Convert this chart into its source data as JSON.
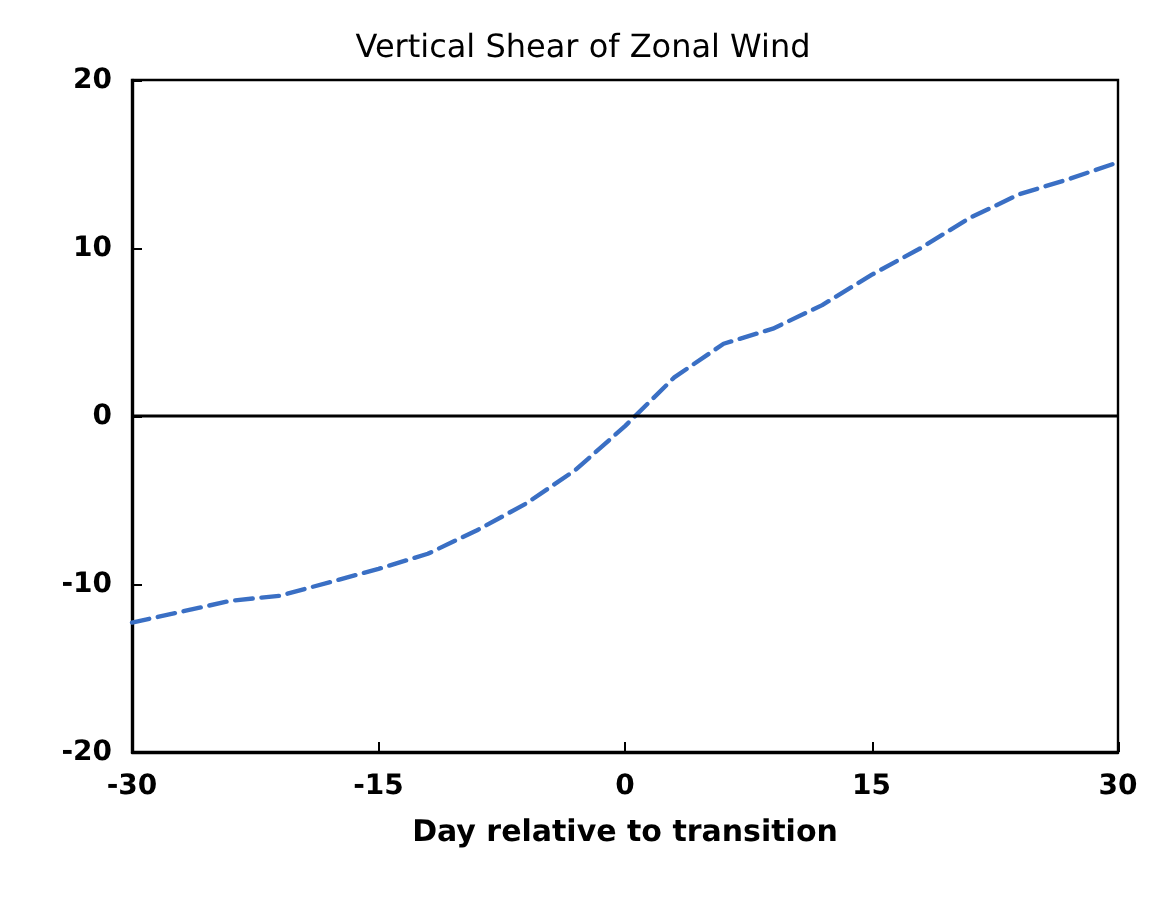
{
  "chart_data": {
    "type": "line",
    "title": "Vertical Shear of Zonal Wind",
    "xlabel": "Day relative to transition",
    "x": [
      -30,
      -24,
      -21,
      -18,
      -15,
      -12,
      -9,
      -6,
      -3,
      0,
      3,
      6,
      9,
      12,
      15,
      18,
      21,
      24,
      27,
      30
    ],
    "series": [
      {
        "color": "#3a6fc4",
        "values": [
          -12.3,
          -11,
          -10.7,
          -9.9,
          -9.1,
          -8.2,
          -6.8,
          -5.2,
          -3.2,
          -0.6,
          2.3,
          4.3,
          5.2,
          6.6,
          8.4,
          10,
          11.8,
          13.2,
          14.1,
          15.1
        ]
      }
    ],
    "xlim": [
      -30,
      30
    ],
    "xticks": [
      -30,
      -15,
      0,
      15,
      30
    ],
    "ylim": [
      -20,
      20
    ],
    "yticks": [
      -20,
      -10,
      0,
      10,
      20
    ],
    "ref_lines": [
      {
        "axis": "y",
        "value": 0,
        "color": "#000000"
      }
    ],
    "grid": false,
    "marker": "none",
    "line_style": "dashed"
  }
}
